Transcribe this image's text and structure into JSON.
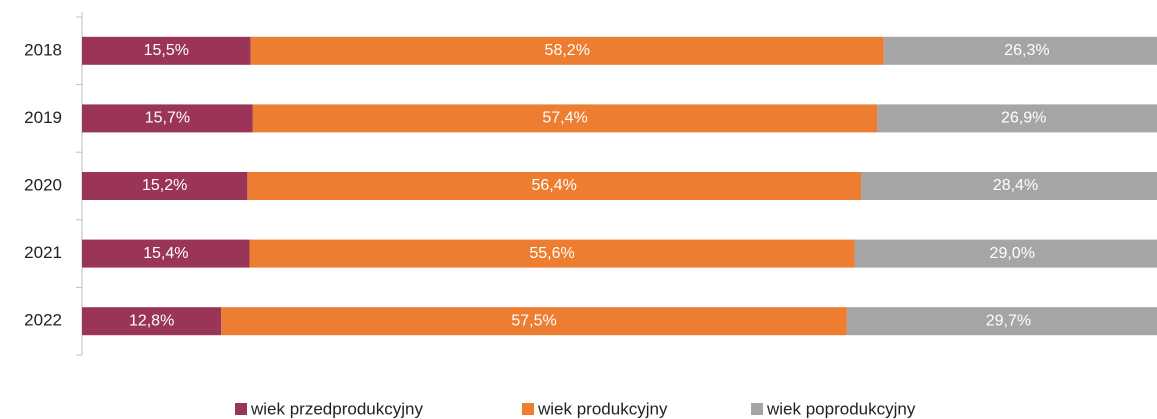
{
  "chart_data": {
    "type": "stacked-bar-horizontal",
    "categories": [
      "2018",
      "2019",
      "2020",
      "2021",
      "2022"
    ],
    "series": [
      {
        "name": "wiek przedprodukcyjny",
        "color": "#9b3558",
        "values": [
          15.5,
          15.7,
          15.2,
          15.4,
          12.8
        ],
        "value_labels": [
          "15,5%",
          "15,7%",
          "15,2%",
          "15,4%",
          "12,8%"
        ]
      },
      {
        "name": "wiek produkcyjny",
        "color": "#ed7d31",
        "values": [
          58.2,
          57.4,
          56.4,
          55.6,
          57.5
        ],
        "value_labels": [
          "58,2%",
          "57,4%",
          "56,4%",
          "55,6%",
          "57,5%"
        ]
      },
      {
        "name": "wiek poprodukcyjny",
        "color": "#a5a5a5",
        "values": [
          26.3,
          26.9,
          28.4,
          29.0,
          29.7
        ],
        "value_labels": [
          "26,3%",
          "26,9%",
          "28,4%",
          "29,0%",
          "29,7%"
        ]
      }
    ],
    "xlim": [
      0,
      100
    ],
    "legend": "bottom"
  }
}
